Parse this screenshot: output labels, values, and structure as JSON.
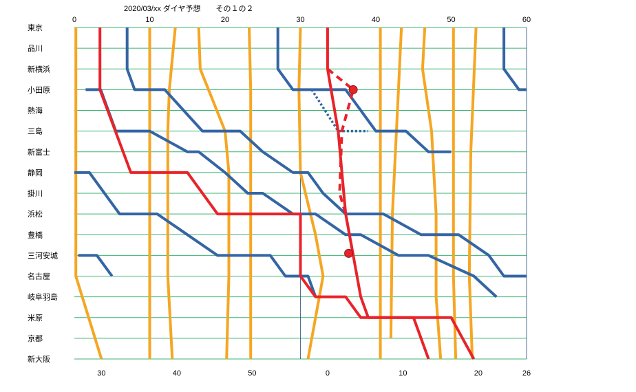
{
  "chart_data": {
    "type": "line",
    "title": "2020/03/xx  ダイヤ予想　　その１の２",
    "stations": [
      "東京",
      "品川",
      "新横浜",
      "小田原",
      "熱海",
      "三島",
      "新富士",
      "静岡",
      "掛川",
      "浜松",
      "豊橋",
      "三河安城",
      "名古屋",
      "岐阜羽島",
      "米原",
      "京都",
      "新大阪"
    ],
    "x_top_ticks": [
      "0",
      "10",
      "20",
      "30",
      "40",
      "50",
      "60"
    ],
    "x_bottom_ticks": [
      "30",
      "40",
      "50",
      "0",
      "10",
      "20",
      "26"
    ],
    "x_range": [
      0,
      60
    ],
    "grid": true,
    "colors": {
      "grid_h": "#3cb371",
      "grid_v": "#1f4e79",
      "orange": "#f5a623",
      "blue": "#3465a4",
      "red": "#e8232a"
    },
    "series": [
      {
        "color": "orange",
        "style": "solid",
        "points": [
          [
            0.2,
            0
          ],
          [
            0.2,
            12
          ],
          [
            3.6,
            16
          ]
        ]
      },
      {
        "color": "orange",
        "style": "solid",
        "points": [
          [
            10,
            0
          ],
          [
            10,
            16
          ]
        ]
      },
      {
        "color": "orange",
        "style": "solid",
        "points": [
          [
            13.4,
            0
          ],
          [
            12.6,
            3
          ],
          [
            12.4,
            5
          ],
          [
            12.4,
            12
          ],
          [
            13,
            16
          ]
        ]
      },
      {
        "color": "orange",
        "style": "solid",
        "points": [
          [
            16.5,
            0
          ],
          [
            16.7,
            2
          ],
          [
            20,
            5
          ],
          [
            20.5,
            7
          ],
          [
            20.5,
            12
          ],
          [
            20.2,
            16
          ]
        ]
      },
      {
        "color": "orange",
        "style": "solid",
        "points": [
          [
            23.2,
            0
          ],
          [
            23.4,
            3
          ],
          [
            23.4,
            16
          ]
        ]
      },
      {
        "color": "orange",
        "style": "solid",
        "points": [
          [
            30,
            0
          ],
          [
            29.8,
            3
          ],
          [
            30,
            7
          ],
          [
            32,
            10
          ],
          [
            33,
            12
          ],
          [
            31,
            16
          ]
        ]
      },
      {
        "color": "orange",
        "style": "solid",
        "points": [
          [
            40.6,
            0
          ],
          [
            40.6,
            16
          ]
        ]
      },
      {
        "color": "orange",
        "style": "solid",
        "points": [
          [
            43.4,
            0
          ],
          [
            43,
            3
          ],
          [
            42.6,
            6
          ],
          [
            42.2,
            9
          ],
          [
            42,
            15
          ]
        ]
      },
      {
        "color": "orange",
        "style": "solid",
        "points": [
          [
            46.5,
            0
          ],
          [
            46.2,
            2
          ],
          [
            47.4,
            5
          ],
          [
            48,
            9
          ],
          [
            48,
            13
          ],
          [
            48.6,
            16
          ]
        ]
      },
      {
        "color": "orange",
        "style": "solid",
        "points": [
          [
            50.3,
            0
          ],
          [
            50.3,
            6
          ],
          [
            50.3,
            12
          ],
          [
            50.6,
            16
          ]
        ]
      },
      {
        "color": "orange",
        "style": "solid",
        "points": [
          [
            53.3,
            0
          ],
          [
            52.6,
            6
          ],
          [
            52.4,
            12
          ],
          [
            52.8,
            16
          ]
        ]
      },
      {
        "color": "blue",
        "style": "solid",
        "points": [
          [
            1.5,
            3
          ],
          [
            3.5,
            3
          ],
          [
            5.5,
            5
          ],
          [
            10,
            5
          ],
          [
            15,
            6
          ],
          [
            16.5,
            6
          ],
          [
            20,
            7
          ],
          [
            23,
            8
          ],
          [
            25,
            8
          ],
          [
            29,
            9
          ],
          [
            32,
            9
          ],
          [
            36,
            10
          ],
          [
            38,
            10
          ],
          [
            43,
            11
          ],
          [
            47,
            11
          ],
          [
            53,
            12
          ],
          [
            56,
            13
          ]
        ]
      },
      {
        "color": "blue",
        "style": "solid",
        "points": [
          [
            7,
            0
          ],
          [
            7,
            2
          ],
          [
            8,
            3
          ],
          [
            12,
            3
          ],
          [
            17,
            5
          ],
          [
            22,
            5
          ],
          [
            25,
            6
          ],
          [
            29,
            7
          ],
          [
            31,
            7
          ],
          [
            33,
            8
          ],
          [
            36,
            9
          ],
          [
            41,
            9
          ],
          [
            46,
            10
          ],
          [
            51,
            10
          ],
          [
            55,
            11
          ],
          [
            57,
            12
          ],
          [
            60,
            12
          ]
        ]
      },
      {
        "color": "blue",
        "style": "solid",
        "points": [
          [
            0,
            7
          ],
          [
            2,
            7
          ],
          [
            6,
            9
          ],
          [
            11,
            9
          ],
          [
            15,
            10
          ],
          [
            19,
            11
          ],
          [
            26,
            11
          ],
          [
            28,
            12
          ],
          [
            31,
            12
          ],
          [
            32,
            13
          ]
        ]
      },
      {
        "color": "blue",
        "style": "solid",
        "points": [
          [
            27,
            0
          ],
          [
            27,
            2
          ],
          [
            29,
            3
          ],
          [
            36,
            3
          ],
          [
            40,
            5
          ],
          [
            44,
            5
          ],
          [
            47,
            6
          ],
          [
            50,
            6
          ]
        ]
      },
      {
        "color": "blue",
        "style": "solid",
        "points": [
          [
            57,
            0
          ],
          [
            57,
            2
          ],
          [
            59,
            3
          ],
          [
            60,
            3
          ]
        ]
      },
      {
        "color": "blue",
        "style": "solid",
        "points": [
          [
            0.5,
            11
          ],
          [
            3,
            11
          ],
          [
            5,
            12
          ]
        ]
      },
      {
        "color": "blue",
        "style": "dotted",
        "points": [
          [
            31.5,
            3
          ],
          [
            35,
            5
          ],
          [
            39,
            5
          ]
        ]
      },
      {
        "color": "red",
        "style": "solid",
        "points": [
          [
            3.4,
            0
          ],
          [
            3.4,
            3
          ],
          [
            7.5,
            7
          ],
          [
            15,
            7
          ],
          [
            19,
            9
          ],
          [
            30,
            9
          ],
          [
            30,
            12
          ],
          [
            32,
            13
          ],
          [
            36,
            13
          ],
          [
            38,
            14
          ],
          [
            46,
            14
          ],
          [
            50,
            14
          ],
          [
            53,
            16
          ]
        ]
      },
      {
        "color": "red",
        "style": "solid",
        "points": [
          [
            33.6,
            0
          ],
          [
            33.6,
            2
          ],
          [
            35,
            5
          ],
          [
            36,
            9
          ],
          [
            37,
            11
          ],
          [
            38,
            13
          ],
          [
            39,
            14
          ],
          [
            43,
            14
          ],
          [
            45,
            14
          ],
          [
            47,
            16
          ]
        ]
      },
      {
        "color": "red",
        "style": "dashed",
        "points": [
          [
            33.6,
            2
          ],
          [
            37,
            3
          ],
          [
            35.5,
            5
          ],
          [
            35.2,
            8
          ],
          [
            36,
            9
          ],
          [
            37,
            11
          ]
        ]
      }
    ],
    "markers": [
      {
        "color": "red",
        "at": [
          37,
          3
        ]
      },
      {
        "color": "red",
        "at": [
          36.4,
          10.9
        ]
      }
    ]
  }
}
